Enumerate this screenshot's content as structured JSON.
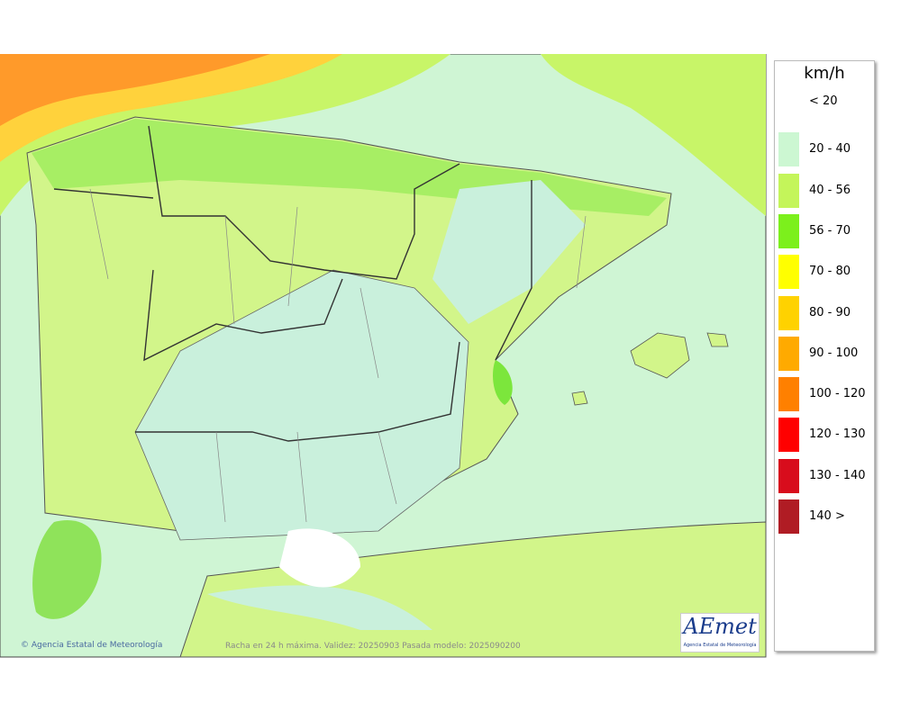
{
  "legend": {
    "title": "km/h",
    "items": [
      {
        "label": "< 20",
        "color": null
      },
      {
        "label": "20 - 40",
        "color": "#ccf7d2"
      },
      {
        "label": "40 - 56",
        "color": "#c4f55a"
      },
      {
        "label": "56 - 70",
        "color": "#7cf01c"
      },
      {
        "label": "70 - 80",
        "color": "#ffff00"
      },
      {
        "label": "80 - 90",
        "color": "#ffd200"
      },
      {
        "label": "90 - 100",
        "color": "#ffaa00"
      },
      {
        "label": "100 - 120",
        "color": "#ff8000"
      },
      {
        "label": "120 - 130",
        "color": "#ff0000"
      },
      {
        "label": "130 - 140",
        "color": "#d80c1c"
      },
      {
        "label": "140 >",
        "color": "#b01c24"
      }
    ]
  },
  "credit": "Agencia Estatal de Meteorología",
  "caption": "Racha en 24 h máxima. Validez: 20250903 Pasada modelo: 2025090200",
  "logo": {
    "text": "AEmet",
    "subtitle": "Agencia Estatal de Meteorología"
  }
}
